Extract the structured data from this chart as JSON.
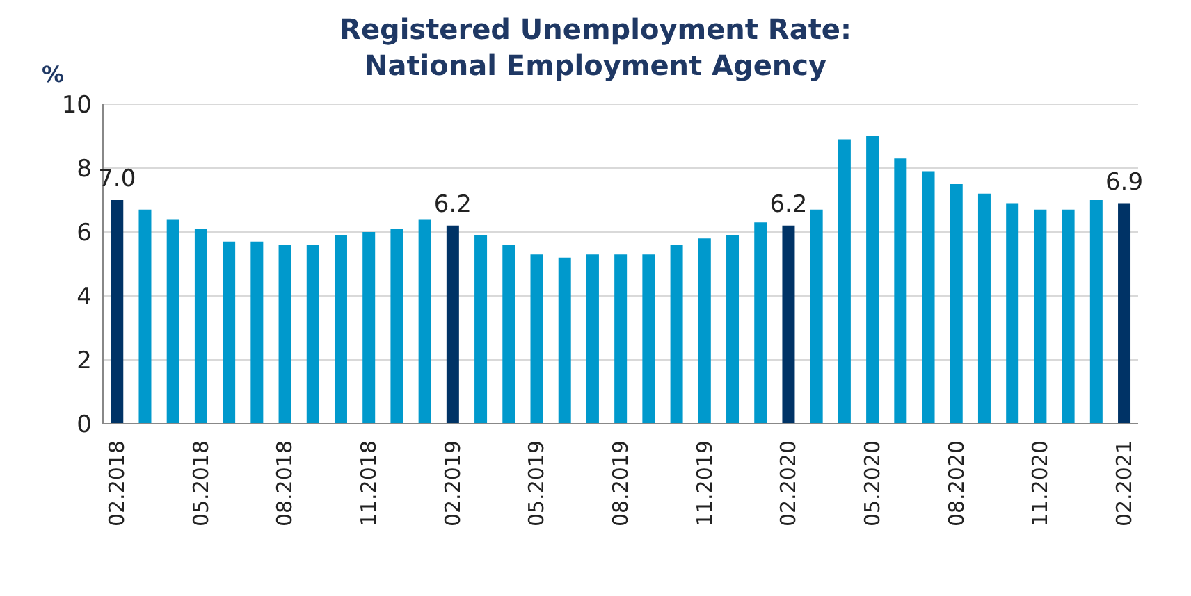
{
  "chart_data": {
    "type": "bar",
    "title": "Registered Unemployment Rate: National Employment Agency",
    "ylabel": "%",
    "categories": [
      "02.2018",
      null,
      null,
      "05.2018",
      null,
      null,
      "08.2018",
      null,
      null,
      "11.2018",
      null,
      null,
      "02.2019",
      null,
      null,
      "05.2019",
      null,
      null,
      "08.2019",
      null,
      null,
      "11.2019",
      null,
      null,
      "02.2020",
      null,
      null,
      "05.2020",
      null,
      null,
      "08.2020",
      null,
      null,
      "11.2020",
      null,
      null,
      "02.2021"
    ],
    "values": [
      7.0,
      6.7,
      6.4,
      6.1,
      5.7,
      5.7,
      5.6,
      5.6,
      5.9,
      6.0,
      6.1,
      6.4,
      6.2,
      5.9,
      5.6,
      5.3,
      5.2,
      5.3,
      5.3,
      5.3,
      5.6,
      5.8,
      5.9,
      6.3,
      6.2,
      6.7,
      8.9,
      9.0,
      8.3,
      7.9,
      7.5,
      7.2,
      6.9,
      6.7,
      6.7,
      7.0,
      6.9
    ],
    "colors": [
      "#003366",
      "#0099cc",
      "#0099cc",
      "#0099cc",
      "#0099cc",
      "#0099cc",
      "#0099cc",
      "#0099cc",
      "#0099cc",
      "#0099cc",
      "#0099cc",
      "#0099cc",
      "#003366",
      "#0099cc",
      "#0099cc",
      "#0099cc",
      "#0099cc",
      "#0099cc",
      "#0099cc",
      "#0099cc",
      "#0099cc",
      "#0099cc",
      "#0099cc",
      "#0099cc",
      "#003366",
      "#0099cc",
      "#0099cc",
      "#0099cc",
      "#0099cc",
      "#0099cc",
      "#0099cc",
      "#0099cc",
      "#0099cc",
      "#0099cc",
      "#0099cc",
      "#0099cc",
      "#003366"
    ],
    "value_labels": [
      "7.0",
      null,
      null,
      null,
      null,
      null,
      null,
      null,
      null,
      null,
      null,
      null,
      "6.2",
      null,
      null,
      null,
      null,
      null,
      null,
      null,
      null,
      null,
      null,
      null,
      "6.2",
      null,
      null,
      null,
      null,
      null,
      null,
      null,
      null,
      null,
      null,
      null,
      "6.9"
    ],
    "ylim": [
      0,
      10
    ],
    "yticks": [
      0,
      2,
      4,
      6,
      8,
      10
    ],
    "grid": "y"
  }
}
